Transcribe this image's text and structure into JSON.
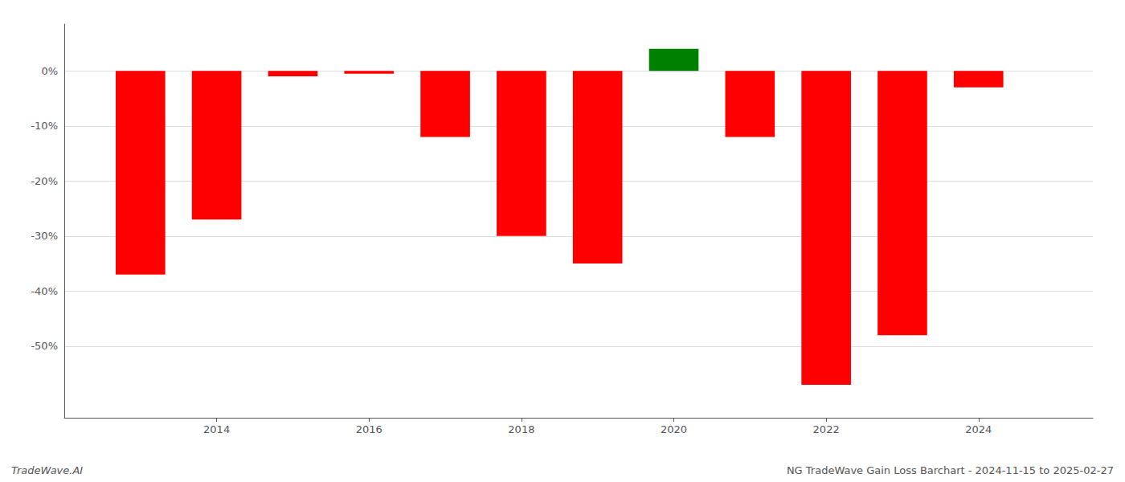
{
  "chart_data": {
    "type": "bar",
    "x": [
      2013,
      2014,
      2015,
      2016,
      2017,
      2018,
      2019,
      2020,
      2021,
      2022,
      2023,
      2024
    ],
    "values": [
      -0.37,
      -0.27,
      -0.01,
      -0.005,
      -0.12,
      -0.3,
      -0.35,
      0.04,
      -0.12,
      -0.57,
      -0.48,
      -0.03
    ],
    "colors": [
      "#ff0000",
      "#ff0000",
      "#ff0000",
      "#ff0000",
      "#ff0000",
      "#ff0000",
      "#ff0000",
      "#008000",
      "#ff0000",
      "#ff0000",
      "#ff0000",
      "#ff0000"
    ],
    "xlim": [
      2012,
      2025.5
    ],
    "ylim": [
      -0.63,
      0.085
    ],
    "xticks": [
      2014,
      2016,
      2018,
      2020,
      2022,
      2024
    ],
    "yticks": [
      {
        "value": 0.0,
        "label": "0%"
      },
      {
        "value": -0.1,
        "label": "-10%"
      },
      {
        "value": -0.2,
        "label": "-20%"
      },
      {
        "value": -0.3,
        "label": "-30%"
      },
      {
        "value": -0.4,
        "label": "-40%"
      },
      {
        "value": -0.5,
        "label": "-50%"
      }
    ],
    "grid": true,
    "annotations": [
      "TradeWave.AI",
      "NG TradeWave Gain Loss Barchart - 2024-11-15 to 2025-02-27"
    ]
  }
}
